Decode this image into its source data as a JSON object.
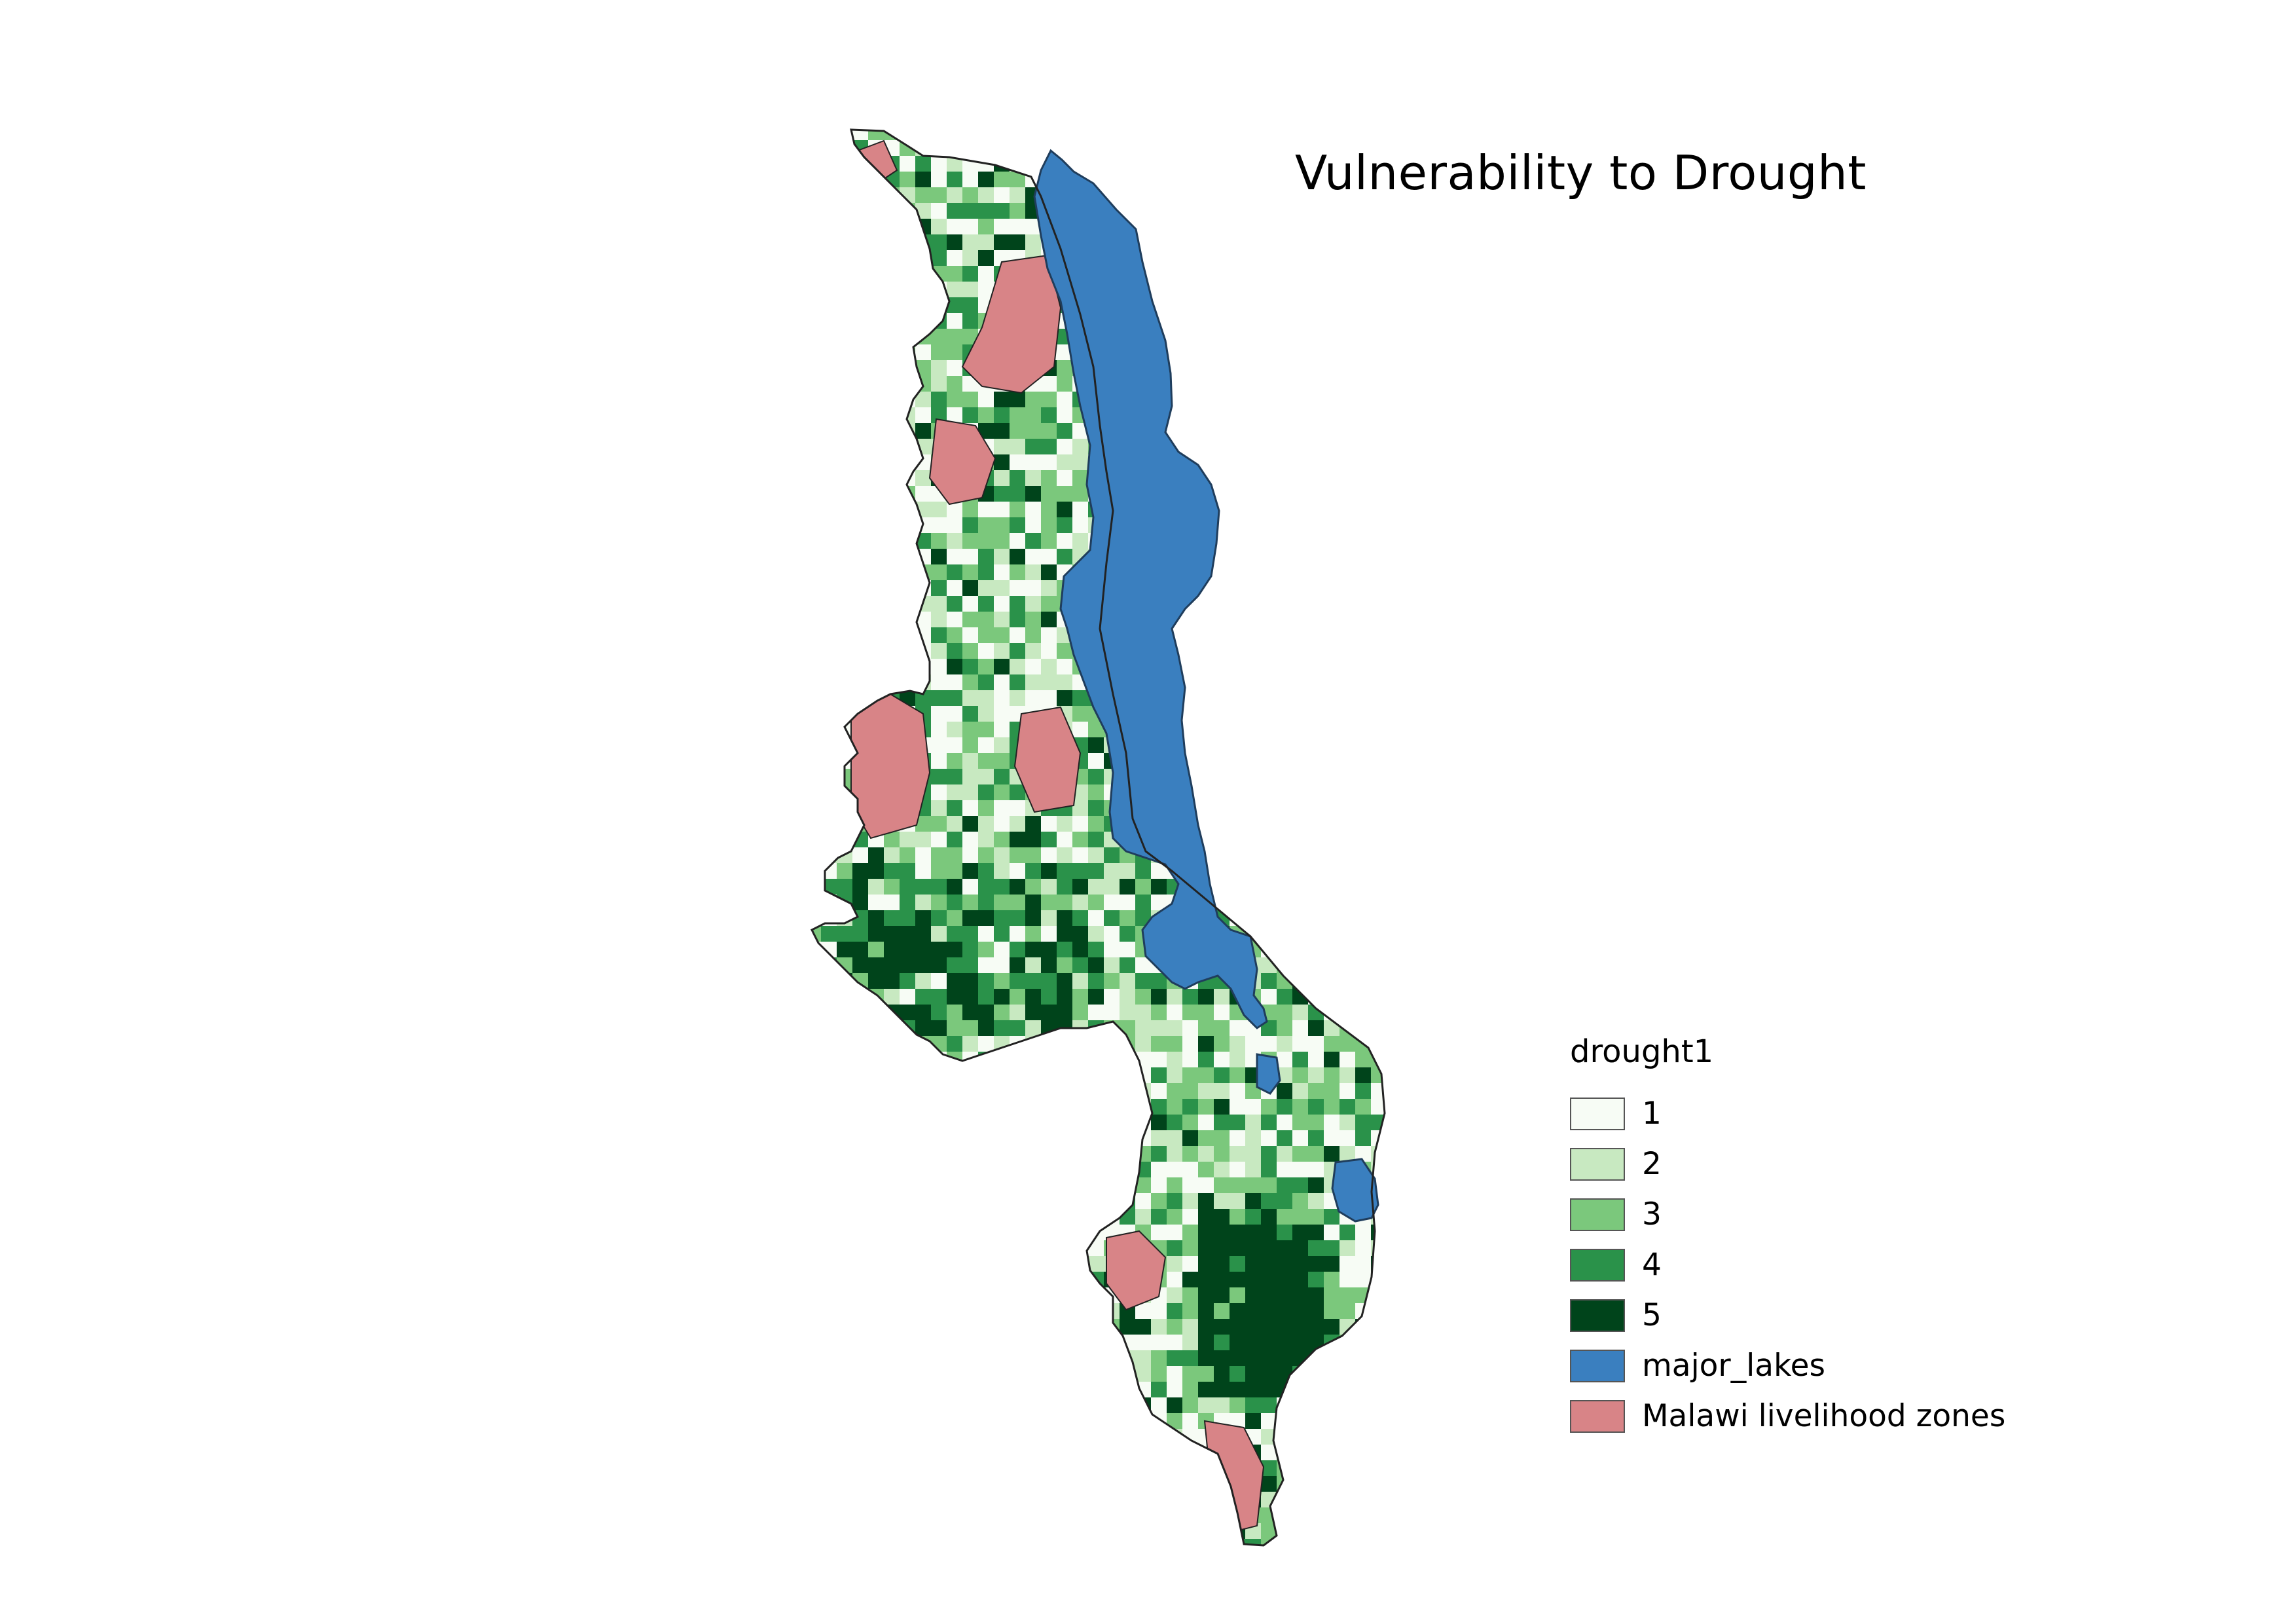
{
  "title": "Vulnerability to Drought",
  "legend": {
    "title": "drought1",
    "items": [
      {
        "label": "1",
        "color": "#f7fcf5"
      },
      {
        "label": "2",
        "color": "#c8e9c1"
      },
      {
        "label": "3",
        "color": "#7bc87c"
      },
      {
        "label": "4",
        "color": "#2a924a"
      },
      {
        "label": "5",
        "color": "#00441b"
      },
      {
        "label": "major_lakes",
        "color": "#3a7fbf"
      },
      {
        "label": "Malawi livelihood zones",
        "color": "#d88487"
      }
    ]
  }
}
